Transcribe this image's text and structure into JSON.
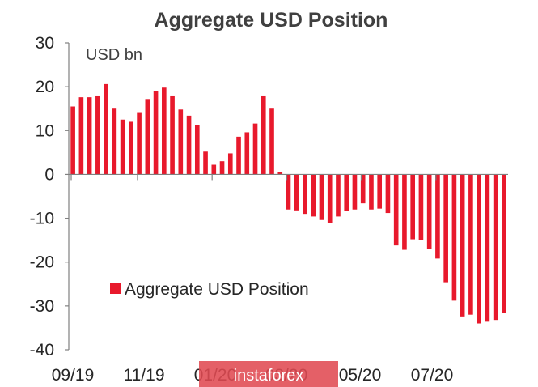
{
  "chart_data": {
    "type": "bar",
    "title": "Aggregate USD Position",
    "ylabel": "USD bn",
    "ylim": [
      -40,
      30
    ],
    "yticks": [
      30,
      20,
      10,
      0,
      -10,
      -20,
      -30,
      -40
    ],
    "xtick_labels": [
      "09/19",
      "11/19",
      "01/20",
      "03/20",
      "05/20",
      "07/20"
    ],
    "grid": false,
    "legend_position": "bottom-left",
    "series": [
      {
        "name": "Aggregate USD Position",
        "color": "#e8192c",
        "values": [
          15.5,
          17.6,
          17.6,
          18.0,
          20.6,
          15.0,
          12.5,
          12.0,
          14.2,
          17.2,
          19.0,
          19.8,
          18.0,
          14.8,
          13.4,
          11.2,
          5.2,
          2.2,
          3.0,
          4.8,
          8.6,
          9.6,
          11.6,
          18.0,
          15.0,
          0.5,
          -8.0,
          -8.2,
          -9.0,
          -9.6,
          -10.4,
          -11.0,
          -9.6,
          -8.4,
          -8.0,
          -6.6,
          -8.0,
          -7.8,
          -8.8,
          -16.2,
          -17.2,
          -14.8,
          -15.0,
          -17.0,
          -19.2,
          -24.6,
          -28.8,
          -32.4,
          -32.0,
          -34.0,
          -33.6,
          -33.2,
          -31.6
        ]
      }
    ]
  },
  "watermark": {
    "text": "instaforex"
  }
}
